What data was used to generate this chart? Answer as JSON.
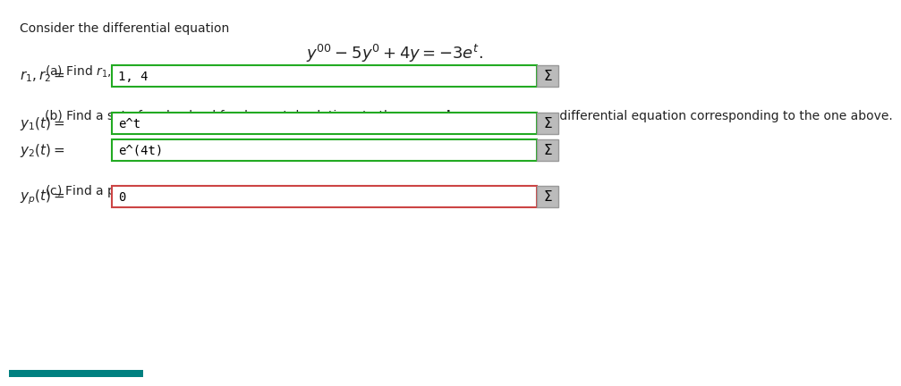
{
  "bg_color": "#ffffff",
  "title_text": "Consider the differential equation",
  "part_a_label": "(a) Find $r_1, r_2$, roots of the characteristic polynomial of the equation above.",
  "part_a_value": "1, 4",
  "part_b_value1": "e^t",
  "part_b_value2": "e^(4t)",
  "part_c_value": "0",
  "box_border_green": "#22aa22",
  "box_border_red": "#cc4444",
  "box_fill": "#ffffff",
  "sigma_bg": "#bbbbbb",
  "sigma_border": "#999999",
  "teal_bar_color": "#008080",
  "text_color": "#222222",
  "font_size_small": 9,
  "font_size_main": 10,
  "font_size_label": 11,
  "font_size_eq": 12
}
